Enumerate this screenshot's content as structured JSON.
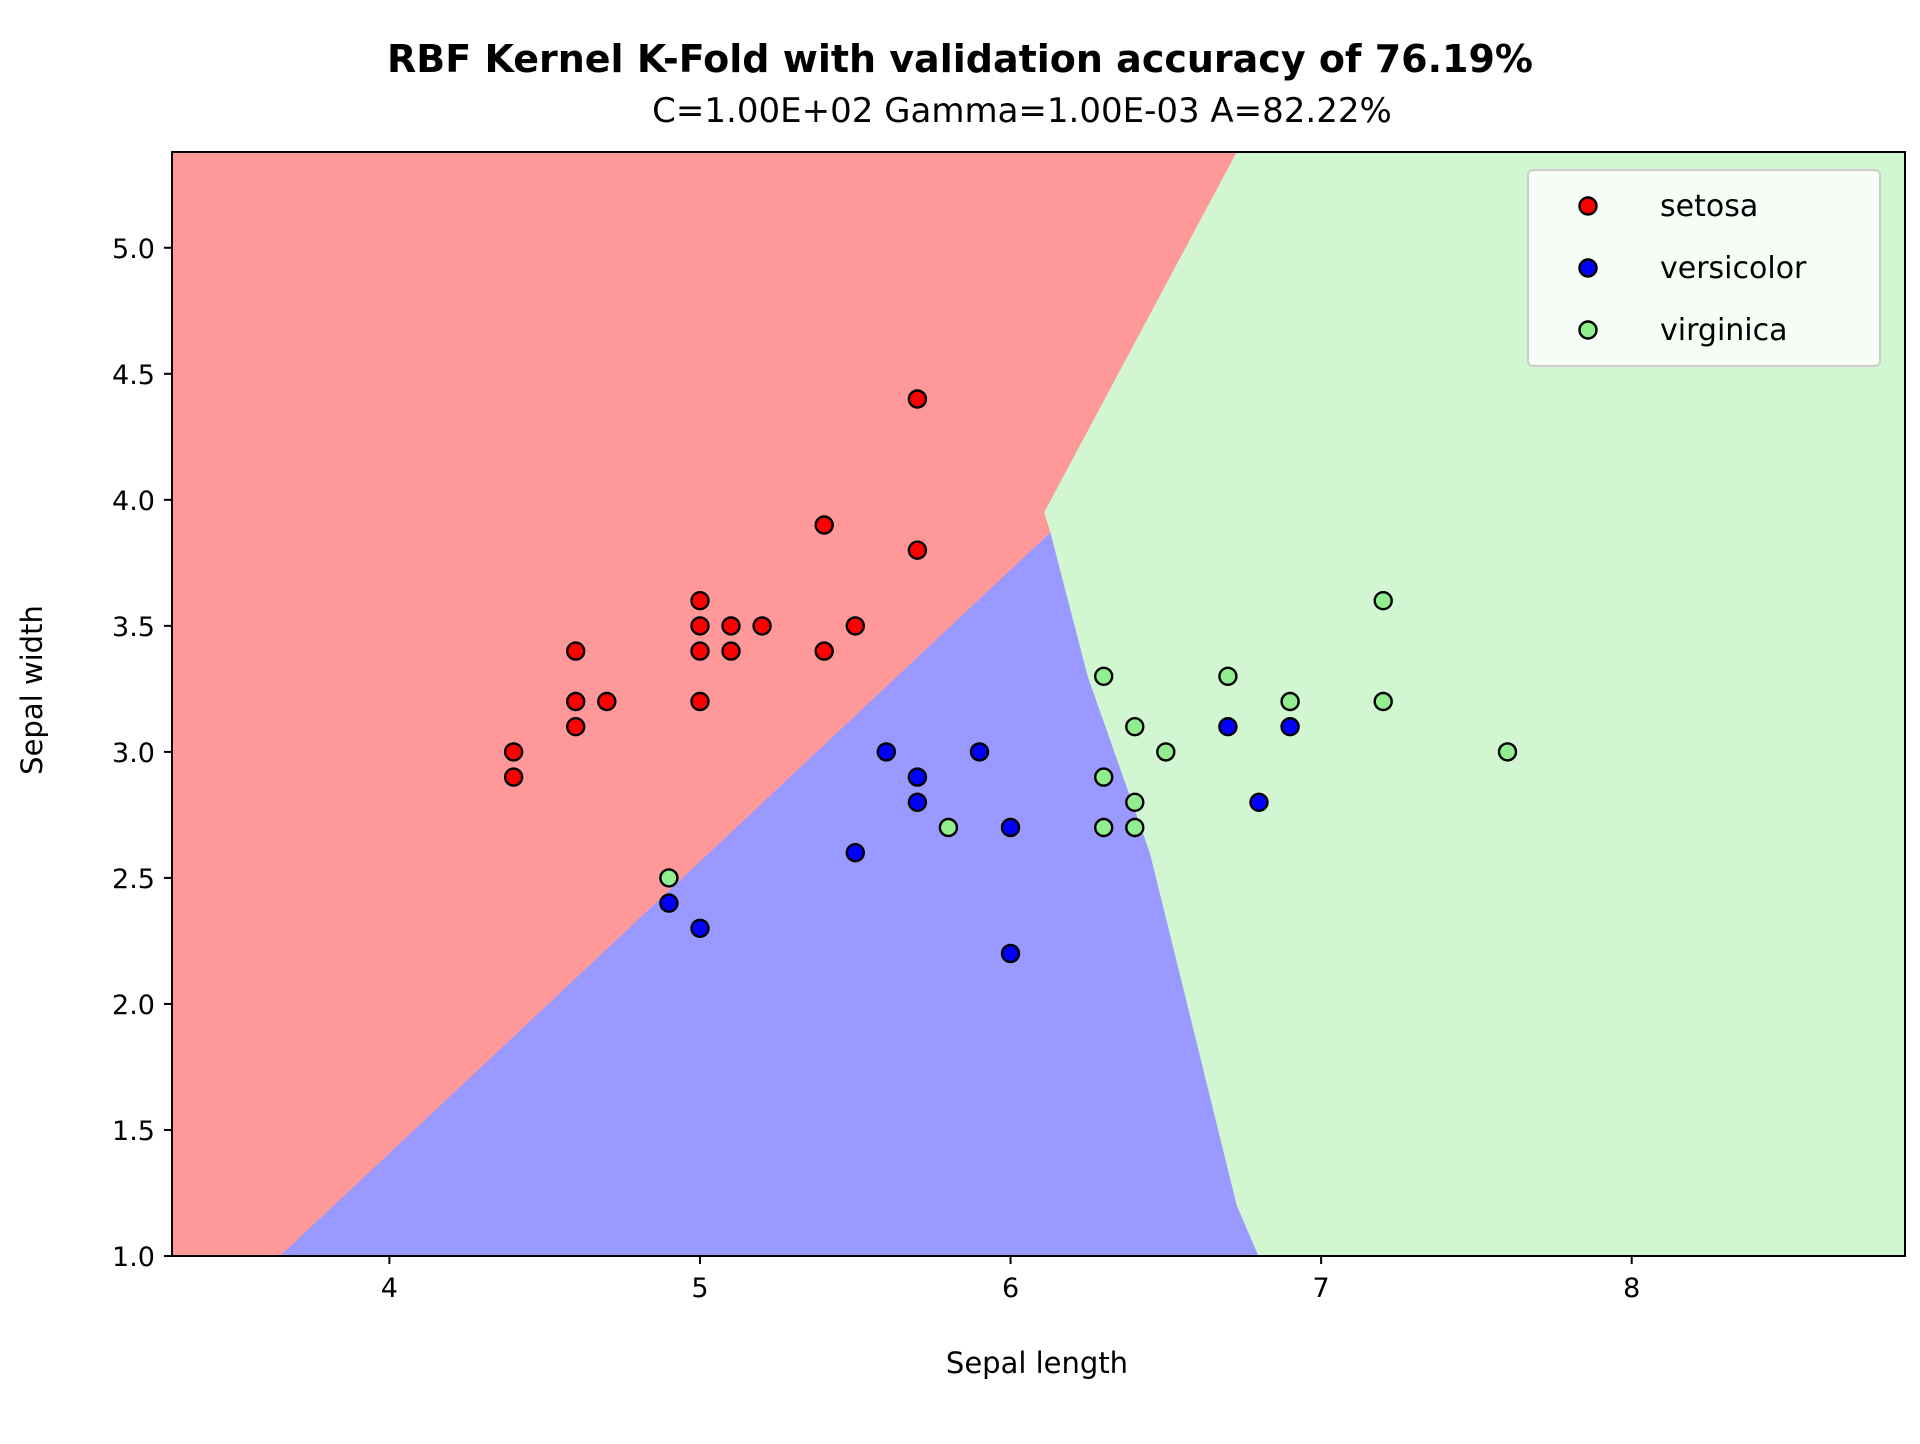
{
  "chart_data": {
    "type": "scatter",
    "title": "RBF Kernel K-Fold with validation accuracy of 76.19%",
    "subtitle": "C=1.00E+02 Gamma=1.00E-03  A=82.22%",
    "xlabel": "Sepal length",
    "ylabel": "Sepal width",
    "xlim": [
      3.3,
      8.88
    ],
    "ylim": [
      1.0,
      5.38
    ],
    "xticks": [
      4,
      5,
      6,
      7,
      8
    ],
    "xtick_labels": [
      "4",
      "5",
      "6",
      "7",
      "8"
    ],
    "yticks": [
      1.0,
      1.5,
      2.0,
      2.5,
      3.0,
      3.5,
      4.0,
      4.5,
      5.0
    ],
    "ytick_labels": [
      "1.0",
      "1.5",
      "2.0",
      "2.5",
      "3.0",
      "3.5",
      "4.0",
      "4.5",
      "5.0"
    ],
    "grid": false,
    "legend_position": "top-right",
    "decision_regions": [
      {
        "class": "setosa",
        "color": "#ff9999",
        "polygon": [
          [
            3.3,
            1.0
          ],
          [
            3.65,
            1.0
          ],
          [
            6.13,
            3.87
          ],
          [
            6.11,
            3.95
          ],
          [
            6.73,
            5.38
          ],
          [
            3.3,
            5.38
          ]
        ]
      },
      {
        "class": "versicolor",
        "color": "#9999ff",
        "polygon": [
          [
            3.65,
            1.0
          ],
          [
            6.8,
            1.0
          ],
          [
            6.73,
            1.2
          ],
          [
            6.55,
            2.1
          ],
          [
            6.45,
            2.6
          ],
          [
            6.25,
            3.3
          ],
          [
            6.13,
            3.87
          ]
        ]
      },
      {
        "class": "virginica",
        "color": "#d1f6d1",
        "polygon": [
          [
            6.8,
            1.0
          ],
          [
            8.88,
            1.0
          ],
          [
            8.88,
            5.38
          ],
          [
            6.73,
            5.38
          ],
          [
            6.11,
            3.95
          ],
          [
            6.13,
            3.87
          ],
          [
            6.25,
            3.3
          ],
          [
            6.45,
            2.6
          ],
          [
            6.55,
            2.1
          ],
          [
            6.73,
            1.2
          ]
        ]
      }
    ],
    "series": [
      {
        "name": "setosa",
        "color": "#ff0000",
        "points": [
          [
            5.7,
            4.4
          ],
          [
            5.4,
            3.9
          ],
          [
            5.7,
            3.8
          ],
          [
            5.0,
            3.6
          ],
          [
            5.0,
            3.5
          ],
          [
            5.1,
            3.5
          ],
          [
            5.2,
            3.5
          ],
          [
            5.5,
            3.5
          ],
          [
            4.6,
            3.4
          ],
          [
            5.0,
            3.4
          ],
          [
            5.1,
            3.4
          ],
          [
            5.4,
            3.4
          ],
          [
            4.6,
            3.2
          ],
          [
            4.7,
            3.2
          ],
          [
            5.0,
            3.2
          ],
          [
            4.6,
            3.1
          ],
          [
            4.4,
            3.0
          ],
          [
            4.4,
            2.9
          ]
        ]
      },
      {
        "name": "versicolor",
        "color": "#0000ff",
        "points": [
          [
            5.6,
            3.0
          ],
          [
            5.9,
            3.0
          ],
          [
            5.7,
            2.9
          ],
          [
            5.7,
            2.8
          ],
          [
            6.0,
            2.7
          ],
          [
            5.5,
            2.6
          ],
          [
            4.9,
            2.4
          ],
          [
            5.0,
            2.3
          ],
          [
            6.0,
            2.2
          ],
          [
            6.7,
            3.1
          ],
          [
            6.9,
            3.1
          ],
          [
            6.8,
            2.8
          ]
        ]
      },
      {
        "name": "virginica",
        "color": "#90ee90",
        "points": [
          [
            7.2,
            3.6
          ],
          [
            6.3,
            3.3
          ],
          [
            6.7,
            3.3
          ],
          [
            6.9,
            3.2
          ],
          [
            7.2,
            3.2
          ],
          [
            6.4,
            3.1
          ],
          [
            6.5,
            3.0
          ],
          [
            7.6,
            3.0
          ],
          [
            6.3,
            2.9
          ],
          [
            6.4,
            2.8
          ],
          [
            5.8,
            2.7
          ],
          [
            6.3,
            2.7
          ],
          [
            6.4,
            2.7
          ],
          [
            4.9,
            2.5
          ]
        ]
      }
    ]
  }
}
